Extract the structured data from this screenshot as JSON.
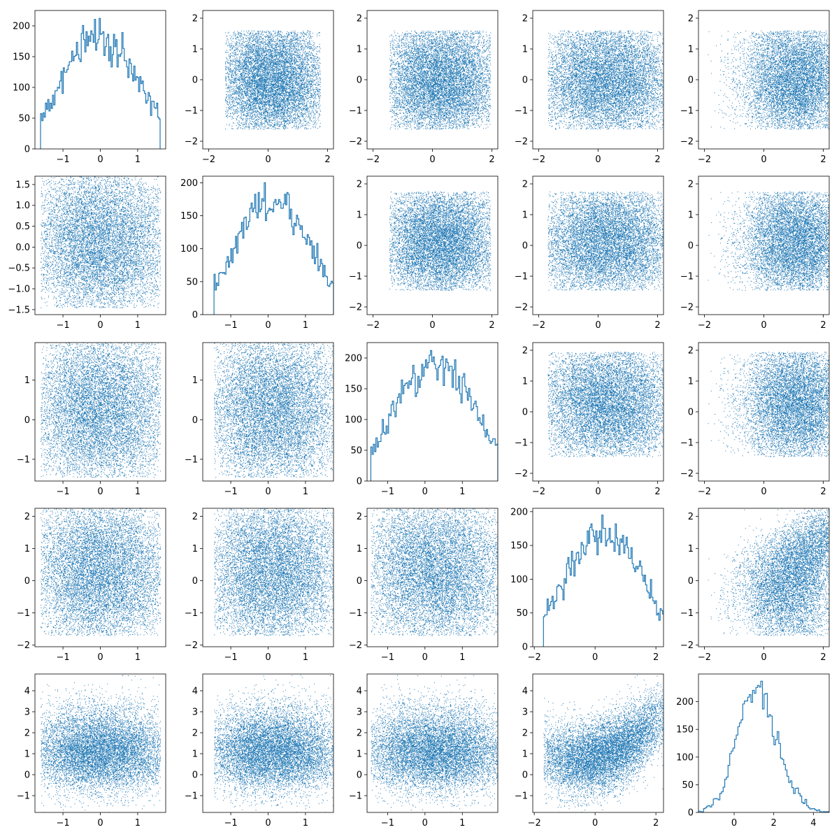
{
  "figure": {
    "rows": 5,
    "cols": 5,
    "color": "#1f77b4",
    "background": "#ffffff",
    "grid": false,
    "legend": "none"
  },
  "chart_data": [
    {
      "row": 0,
      "col": 0,
      "type": "histogram",
      "dim": 0,
      "xlim": [
        -1.75,
        1.75
      ],
      "ylim": [
        0,
        225
      ],
      "xticks": [
        "-1",
        "0",
        "1"
      ],
      "yticks": [
        "0",
        "50",
        "100",
        "150",
        "200"
      ],
      "max_count": 212
    },
    {
      "row": 0,
      "col": 1,
      "type": "scatter",
      "xdim": 1,
      "ydim": 0,
      "xlim": [
        -2.2,
        2.2
      ],
      "ylim": [
        -2.25,
        2.25
      ],
      "xticks": [
        "-2",
        "0",
        "2"
      ],
      "yticks": [
        "-2",
        "-1",
        "0",
        "1",
        "2"
      ]
    },
    {
      "row": 0,
      "col": 2,
      "type": "scatter",
      "xdim": 2,
      "ydim": 0,
      "xlim": [
        -2.2,
        2.2
      ],
      "ylim": [
        -2.25,
        2.25
      ],
      "xticks": [
        "-2",
        "0",
        "2"
      ],
      "yticks": [
        "-2",
        "-1",
        "0",
        "1",
        "2"
      ]
    },
    {
      "row": 0,
      "col": 3,
      "type": "scatter",
      "xdim": 3,
      "ydim": 0,
      "xlim": [
        -2.2,
        2.2
      ],
      "ylim": [
        -2.25,
        2.25
      ],
      "xticks": [
        "-2",
        "0",
        "2"
      ],
      "yticks": [
        "-2",
        "-1",
        "0",
        "1",
        "2"
      ]
    },
    {
      "row": 0,
      "col": 4,
      "type": "scatter",
      "xdim": 4,
      "ydim": 0,
      "xlim": [
        -2.2,
        2.2
      ],
      "ylim": [
        -2.25,
        2.25
      ],
      "xticks": [
        "-2",
        "0",
        "2"
      ],
      "yticks": [
        "-2",
        "-1",
        "0",
        "1",
        "2"
      ]
    },
    {
      "row": 1,
      "col": 0,
      "type": "scatter",
      "xdim": 0,
      "ydim": 1,
      "xlim": [
        -1.75,
        1.75
      ],
      "ylim": [
        -1.62,
        1.7
      ],
      "xticks": [
        "-1",
        "0",
        "1"
      ],
      "yticks": [
        "-1.5",
        "-1.0",
        "-0.5",
        "0.0",
        "0.5",
        "1.0",
        "1.5"
      ]
    },
    {
      "row": 1,
      "col": 1,
      "type": "histogram",
      "dim": 1,
      "xlim": [
        -1.75,
        1.75
      ],
      "ylim": [
        0,
        210
      ],
      "xticks": [
        "-1",
        "0",
        "1"
      ],
      "yticks": [
        "0",
        "50",
        "100",
        "150",
        "200"
      ],
      "max_count": 200
    },
    {
      "row": 1,
      "col": 2,
      "type": "scatter",
      "xdim": 2,
      "ydim": 1,
      "xlim": [
        -2.2,
        2.2
      ],
      "ylim": [
        -2.25,
        2.25
      ],
      "xticks": [
        "-2",
        "0",
        "2"
      ],
      "yticks": [
        "-2",
        "-1",
        "0",
        "1",
        "2"
      ]
    },
    {
      "row": 1,
      "col": 3,
      "type": "scatter",
      "xdim": 3,
      "ydim": 1,
      "xlim": [
        -2.2,
        2.2
      ],
      "ylim": [
        -2.25,
        2.25
      ],
      "xticks": [
        "-2",
        "0",
        "2"
      ],
      "yticks": [
        "-2",
        "-1",
        "0",
        "1",
        "2"
      ]
    },
    {
      "row": 1,
      "col": 4,
      "type": "scatter",
      "xdim": 4,
      "ydim": 1,
      "xlim": [
        -2.2,
        2.2
      ],
      "ylim": [
        -2.25,
        2.25
      ],
      "xticks": [
        "-2",
        "0",
        "2"
      ],
      "yticks": [
        "-2",
        "-1",
        "0",
        "1",
        "2"
      ]
    },
    {
      "row": 2,
      "col": 0,
      "type": "scatter",
      "xdim": 0,
      "ydim": 2,
      "xlim": [
        -1.75,
        1.75
      ],
      "ylim": [
        -1.55,
        1.95
      ],
      "xticks": [
        "-1",
        "0",
        "1"
      ],
      "yticks": [
        "-1",
        "0",
        "1"
      ]
    },
    {
      "row": 2,
      "col": 1,
      "type": "scatter",
      "xdim": 1,
      "ydim": 2,
      "xlim": [
        -1.75,
        1.75
      ],
      "ylim": [
        -1.55,
        1.95
      ],
      "xticks": [
        "-1",
        "0",
        "1"
      ],
      "yticks": [
        "-1",
        "0",
        "1"
      ]
    },
    {
      "row": 2,
      "col": 2,
      "type": "histogram",
      "dim": 2,
      "xlim": [
        -1.55,
        1.95
      ],
      "ylim": [
        0,
        225
      ],
      "xticks": [
        "-1",
        "0",
        "1"
      ],
      "yticks": [
        "0",
        "50",
        "100",
        "150",
        "200"
      ],
      "max_count": 212
    },
    {
      "row": 2,
      "col": 3,
      "type": "scatter",
      "xdim": 3,
      "ydim": 2,
      "xlim": [
        -2.2,
        2.2
      ],
      "ylim": [
        -2.25,
        2.25
      ],
      "xticks": [
        "-2",
        "0",
        "2"
      ],
      "yticks": [
        "-2",
        "-1",
        "0",
        "1",
        "2"
      ]
    },
    {
      "row": 2,
      "col": 4,
      "type": "scatter",
      "xdim": 4,
      "ydim": 2,
      "xlim": [
        -2.2,
        2.2
      ],
      "ylim": [
        -2.25,
        2.25
      ],
      "xticks": [
        "-2",
        "0",
        "2"
      ],
      "yticks": [
        "-2",
        "-1",
        "0",
        "1",
        "2"
      ]
    },
    {
      "row": 3,
      "col": 0,
      "type": "scatter",
      "xdim": 0,
      "ydim": 3,
      "xlim": [
        -1.75,
        1.75
      ],
      "ylim": [
        -2.05,
        2.25
      ],
      "xticks": [
        "-1",
        "0",
        "1"
      ],
      "yticks": [
        "-2",
        "-1",
        "0",
        "1",
        "2"
      ]
    },
    {
      "row": 3,
      "col": 1,
      "type": "scatter",
      "xdim": 1,
      "ydim": 3,
      "xlim": [
        -1.75,
        1.75
      ],
      "ylim": [
        -2.05,
        2.25
      ],
      "xticks": [
        "-1",
        "0",
        "1"
      ],
      "yticks": [
        "-2",
        "-1",
        "0",
        "1",
        "2"
      ]
    },
    {
      "row": 3,
      "col": 2,
      "type": "scatter",
      "xdim": 2,
      "ydim": 3,
      "xlim": [
        -1.55,
        1.95
      ],
      "ylim": [
        -2.05,
        2.25
      ],
      "xticks": [
        "-1",
        "0",
        "1"
      ],
      "yticks": [
        "-2",
        "-1",
        "0",
        "1",
        "2"
      ]
    },
    {
      "row": 3,
      "col": 3,
      "type": "histogram",
      "dim": 3,
      "xlim": [
        -2.05,
        2.25
      ],
      "ylim": [
        0,
        205
      ],
      "xticks": [
        "-2",
        "0",
        "2"
      ],
      "yticks": [
        "0",
        "50",
        "100",
        "150",
        "200"
      ],
      "max_count": 195
    },
    {
      "row": 3,
      "col": 4,
      "type": "scatter",
      "xdim": 4,
      "ydim": 3,
      "xlim": [
        -2.2,
        2.2
      ],
      "ylim": [
        -2.05,
        2.25
      ],
      "xticks": [
        "-2",
        "0",
        "2"
      ],
      "yticks": [
        "-2",
        "-1",
        "0",
        "1",
        "2"
      ]
    },
    {
      "row": 4,
      "col": 0,
      "type": "scatter",
      "xdim": 0,
      "ydim": 4,
      "xlim": [
        -1.75,
        1.75
      ],
      "ylim": [
        -1.8,
        4.8
      ],
      "xticks": [
        "-1",
        "0",
        "1"
      ],
      "yticks": [
        "-1",
        "0",
        "1",
        "2",
        "3",
        "4"
      ]
    },
    {
      "row": 4,
      "col": 1,
      "type": "scatter",
      "xdim": 1,
      "ydim": 4,
      "xlim": [
        -1.75,
        1.75
      ],
      "ylim": [
        -1.8,
        4.8
      ],
      "xticks": [
        "-1",
        "0",
        "1"
      ],
      "yticks": [
        "-1",
        "0",
        "1",
        "2",
        "3",
        "4"
      ]
    },
    {
      "row": 4,
      "col": 2,
      "type": "scatter",
      "xdim": 2,
      "ydim": 4,
      "xlim": [
        -1.55,
        1.95
      ],
      "ylim": [
        -1.8,
        4.8
      ],
      "xticks": [
        "-1",
        "0",
        "1"
      ],
      "yticks": [
        "-1",
        "0",
        "1",
        "2",
        "3",
        "4"
      ]
    },
    {
      "row": 4,
      "col": 3,
      "type": "scatter",
      "xdim": 3,
      "ydim": 4,
      "xlim": [
        -2.05,
        2.25
      ],
      "ylim": [
        -1.8,
        4.8
      ],
      "xticks": [
        "-2",
        "0",
        "2"
      ],
      "yticks": [
        "-1",
        "0",
        "1",
        "2",
        "3",
        "4"
      ]
    },
    {
      "row": 4,
      "col": 4,
      "type": "histogram",
      "dim": 4,
      "xlim": [
        -1.8,
        4.8
      ],
      "ylim": [
        0,
        250
      ],
      "xticks": [
        "0",
        "2",
        "4"
      ],
      "yticks": [
        "0",
        "50",
        "100",
        "150",
        "200"
      ],
      "max_count": 237
    }
  ],
  "distributions": [
    {
      "dim": 0,
      "model": "uniform-disk",
      "center": 0.0,
      "radius": 1.6
    },
    {
      "dim": 1,
      "model": "uniform-disk",
      "center": 0.15,
      "radius": 1.6
    },
    {
      "dim": 2,
      "model": "uniform-disk",
      "center": 0.25,
      "radius": 1.7
    },
    {
      "dim": 3,
      "model": "uniform-disk",
      "center": 0.3,
      "radius": 2.0
    },
    {
      "dim": 4,
      "model": "quadratic",
      "mean": 1.2,
      "scale": 1.0
    }
  ]
}
